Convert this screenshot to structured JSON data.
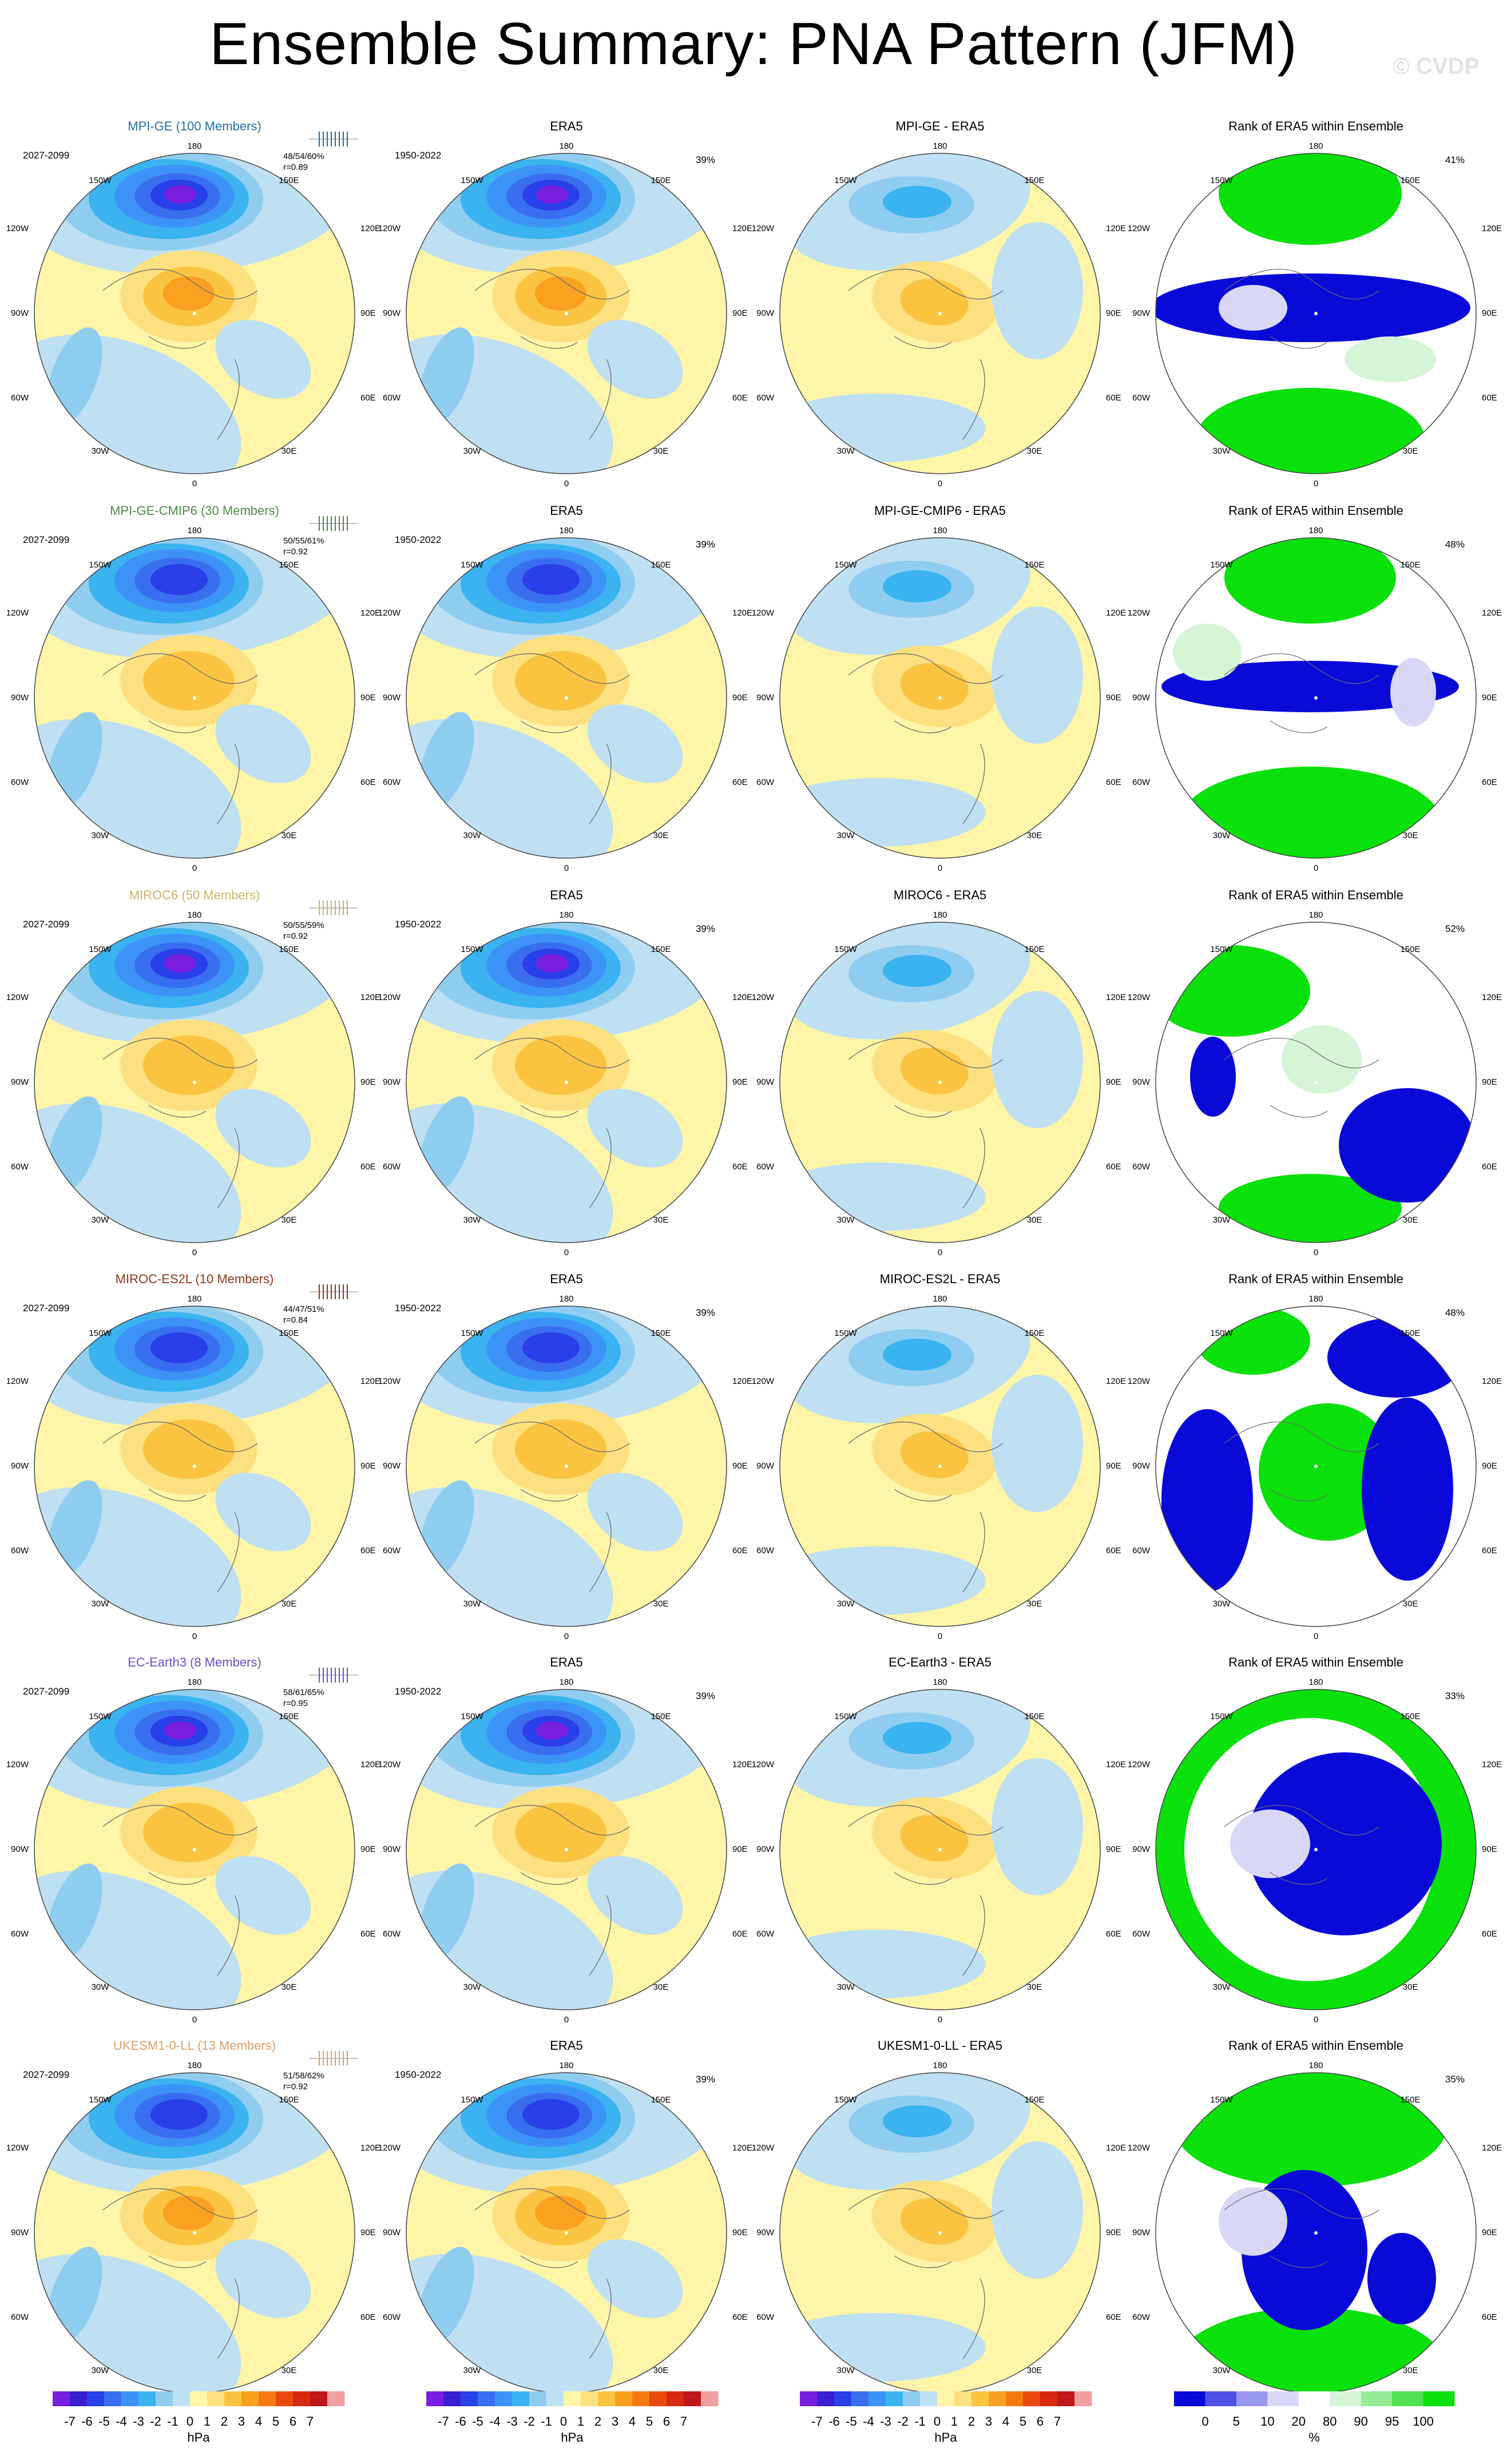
{
  "header": {
    "title": "Ensemble Summary: PNA Pattern (JFM)",
    "credit": "© CVDP"
  },
  "labels": {
    "top": "180",
    "bottom": "0",
    "ul": "150W",
    "ur": "150E",
    "l1": "120W",
    "r1": "120E",
    "l2": "90W",
    "r2": "90E",
    "l3": "60W",
    "r3": "60E",
    "ll": "30W",
    "lr": "30E"
  },
  "rows": [
    {
      "model": "MPI-GE (100 Members)",
      "model_color": "#1f6fa8",
      "period": "2027-2099",
      "stats1": "48/54/60%",
      "stats2": "r=0.89",
      "obs_title": "ERA5",
      "obs_period": "1950-2022",
      "obs_pct": "39%",
      "diff_title": "MPI-GE - ERA5",
      "rank_title": "Rank of ERA5 within Ensemble",
      "rank_pct": "41%"
    },
    {
      "model": "MPI-GE-CMIP6 (30 Members)",
      "model_color": "#4f8a4a",
      "period": "2027-2099",
      "stats1": "50/55/61%",
      "stats2": "r=0.92",
      "obs_title": "ERA5",
      "obs_period": "1950-2022",
      "obs_pct": "39%",
      "diff_title": "MPI-GE-CMIP6 - ERA5",
      "rank_title": "Rank of ERA5 within Ensemble",
      "rank_pct": "48%"
    },
    {
      "model": "MIROC6 (50 Members)",
      "model_color": "#c9b56a",
      "period": "2027-2099",
      "stats1": "50/55/59%",
      "stats2": "r=0.92",
      "obs_title": "ERA5",
      "obs_period": "1950-2022",
      "obs_pct": "39%",
      "diff_title": "MIROC6 - ERA5",
      "rank_title": "Rank of ERA5 within Ensemble",
      "rank_pct": "52%"
    },
    {
      "model": "MIROC-ES2L (10 Members)",
      "model_color": "#8b3a1a",
      "period": "2027-2099",
      "stats1": "44/47/51%",
      "stats2": "r=0.84",
      "obs_title": "ERA5",
      "obs_period": "1950-2022",
      "obs_pct": "39%",
      "diff_title": "MIROC-ES2L - ERA5",
      "rank_title": "Rank of ERA5 within Ensemble",
      "rank_pct": "48%"
    },
    {
      "model": "EC-Earth3 (8 Members)",
      "model_color": "#6a4fc8",
      "period": "2027-2099",
      "stats1": "58/61/65%",
      "stats2": "r=0.95",
      "obs_title": "ERA5",
      "obs_period": "1950-2022",
      "obs_pct": "39%",
      "diff_title": "EC-Earth3 - ERA5",
      "rank_title": "Rank of ERA5 within Ensemble",
      "rank_pct": "33%"
    },
    {
      "model": "UKESM1-0-LL (13 Members)",
      "model_color": "#d9a06a",
      "period": "2027-2099",
      "stats1": "51/58/62%",
      "stats2": "r=0.92",
      "obs_title": "ERA5",
      "obs_period": "1950-2022",
      "obs_pct": "39%",
      "diff_title": "UKESM1-0-LL - ERA5",
      "rank_title": "Rank of ERA5 within Ensemble",
      "rank_pct": "35%"
    }
  ],
  "colorbars": {
    "hpa_ticks": [
      "-7",
      "-6",
      "-5",
      "-4",
      "-3",
      "-2",
      "-1",
      "0",
      "1",
      "2",
      "3",
      "4",
      "5",
      "6",
      "7"
    ],
    "hpa_unit": "hPa",
    "hpa_colors": [
      "#7a1fe0",
      "#3a1fd0",
      "#2840e8",
      "#3a6ef0",
      "#3d93f5",
      "#3ab3f0",
      "#8fcdf0",
      "#bfe0f2",
      "#fff5a8",
      "#fde080",
      "#fbc440",
      "#f9a020",
      "#f47a10",
      "#ea4a10",
      "#d82a10",
      "#c01818",
      "#f0a0a0"
    ],
    "rank_ticks": [
      "0",
      "5",
      "10",
      "20",
      "80",
      "90",
      "95",
      "100"
    ],
    "rank_unit": "%",
    "rank_colors": [
      "#0a0ad8",
      "#5050e6",
      "#9898ee",
      "#d8d8f6",
      "#ffffff",
      "#d6f5d6",
      "#96ec96",
      "#50e050",
      "#0ae00a"
    ]
  }
}
